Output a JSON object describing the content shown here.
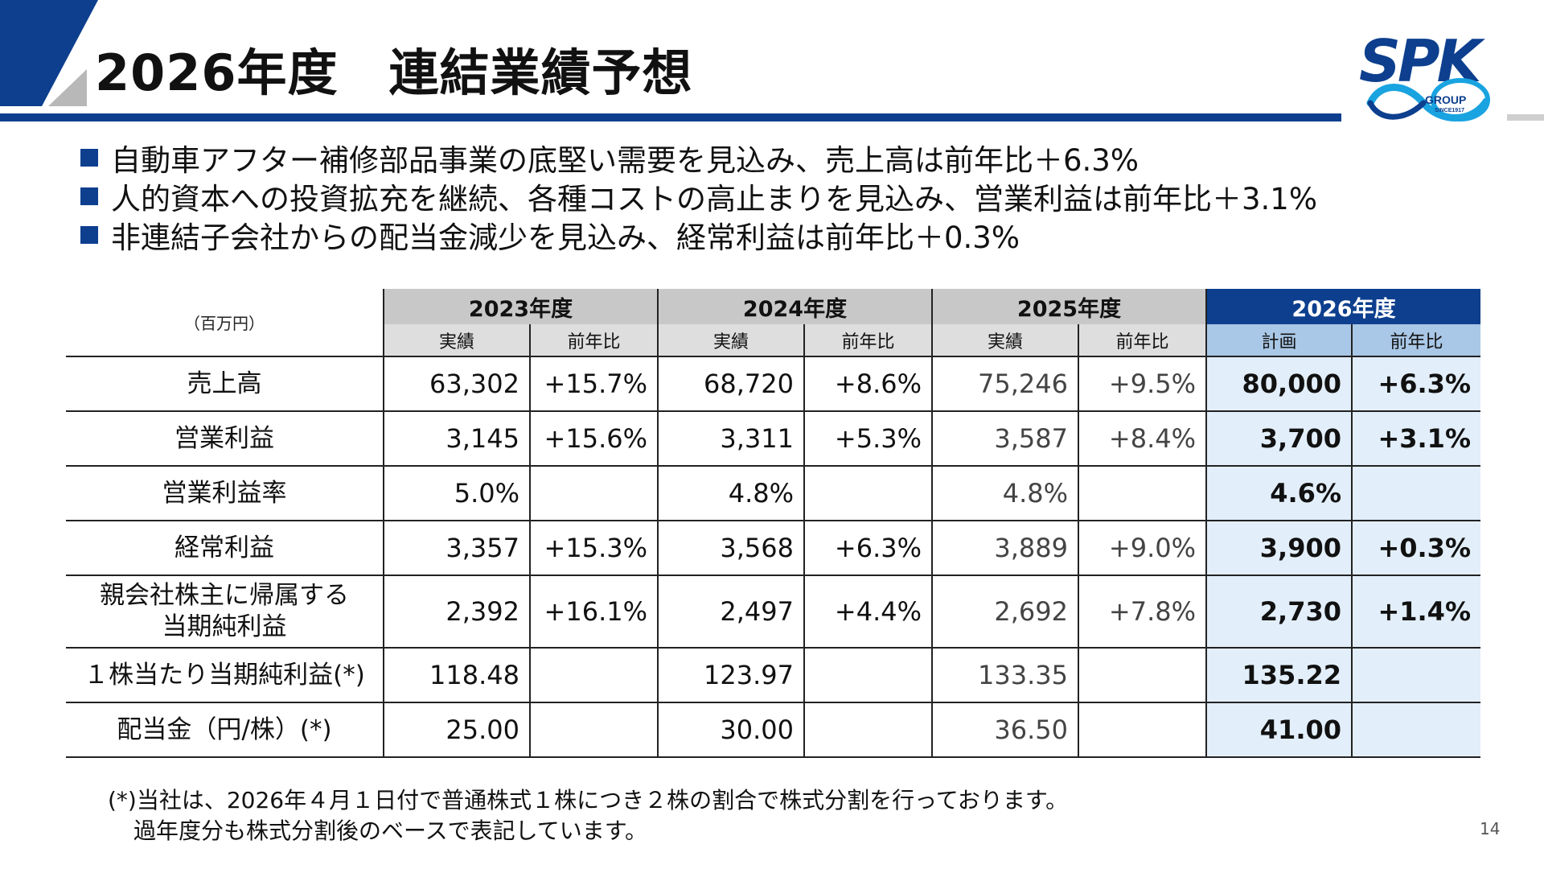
{
  "header": {
    "title": "2026年度　連結業績予想",
    "accent_color": "#0d3f8e"
  },
  "logo": {
    "brand": "SPK",
    "group": "GROUP",
    "since": "SINCE1917"
  },
  "bullets": [
    "自動車アフター補修部品事業の底堅い需要を見込み、売上高は前年比＋6.3%",
    "人的資本への投資拡充を継続、各種コストの高止まりを見込み、営業利益は前年比＋3.1%",
    "非連結子会社からの配当金減少を見込み、経常利益は前年比＋0.3%"
  ],
  "table": {
    "unit": "（百万円）",
    "years": [
      "2023年度",
      "2024年度",
      "2025年度",
      "2026年度"
    ],
    "sub_actual": "実績",
    "sub_yoy": "前年比",
    "sub_plan": "計画",
    "rows": [
      {
        "label": "売上高",
        "label2": "",
        "v": [
          "63,302",
          "+15.7%",
          "68,720",
          "+8.6%",
          "75,246",
          "+9.5%",
          "80,000",
          "+6.3%"
        ]
      },
      {
        "label": "営業利益",
        "label2": "",
        "v": [
          "3,145",
          "+15.6%",
          "3,311",
          "+5.3%",
          "3,587",
          "+8.4%",
          "3,700",
          "+3.1%"
        ]
      },
      {
        "label": "営業利益率",
        "label2": "",
        "v": [
          "5.0%",
          "",
          "4.8%",
          "",
          "4.8%",
          "",
          "4.6%",
          ""
        ]
      },
      {
        "label": "経常利益",
        "label2": "",
        "v": [
          "3,357",
          "+15.3%",
          "3,568",
          "+6.3%",
          "3,889",
          "+9.0%",
          "3,900",
          "+0.3%"
        ]
      },
      {
        "label": "親会社株主に帰属する",
        "label2": "当期純利益",
        "v": [
          "2,392",
          "+16.1%",
          "2,497",
          "+4.4%",
          "2,692",
          "+7.8%",
          "2,730",
          "+1.4%"
        ]
      },
      {
        "label": "１株当たり当期純利益(*)",
        "label2": "",
        "v": [
          "118.48",
          "",
          "123.97",
          "",
          "133.35",
          "",
          "135.22",
          ""
        ]
      },
      {
        "label": "配当金（円/株）(*)",
        "label2": "",
        "v": [
          "25.00",
          "",
          "30.00",
          "",
          "36.50",
          "",
          "41.00",
          ""
        ]
      }
    ]
  },
  "footnote": {
    "line1": "(*)当社は、2026年４月１日付で普通株式１株につき２株の割合で株式分割を行っております。",
    "line2": "過年度分も株式分割後のベースで表記しています。"
  },
  "page_number": "14"
}
